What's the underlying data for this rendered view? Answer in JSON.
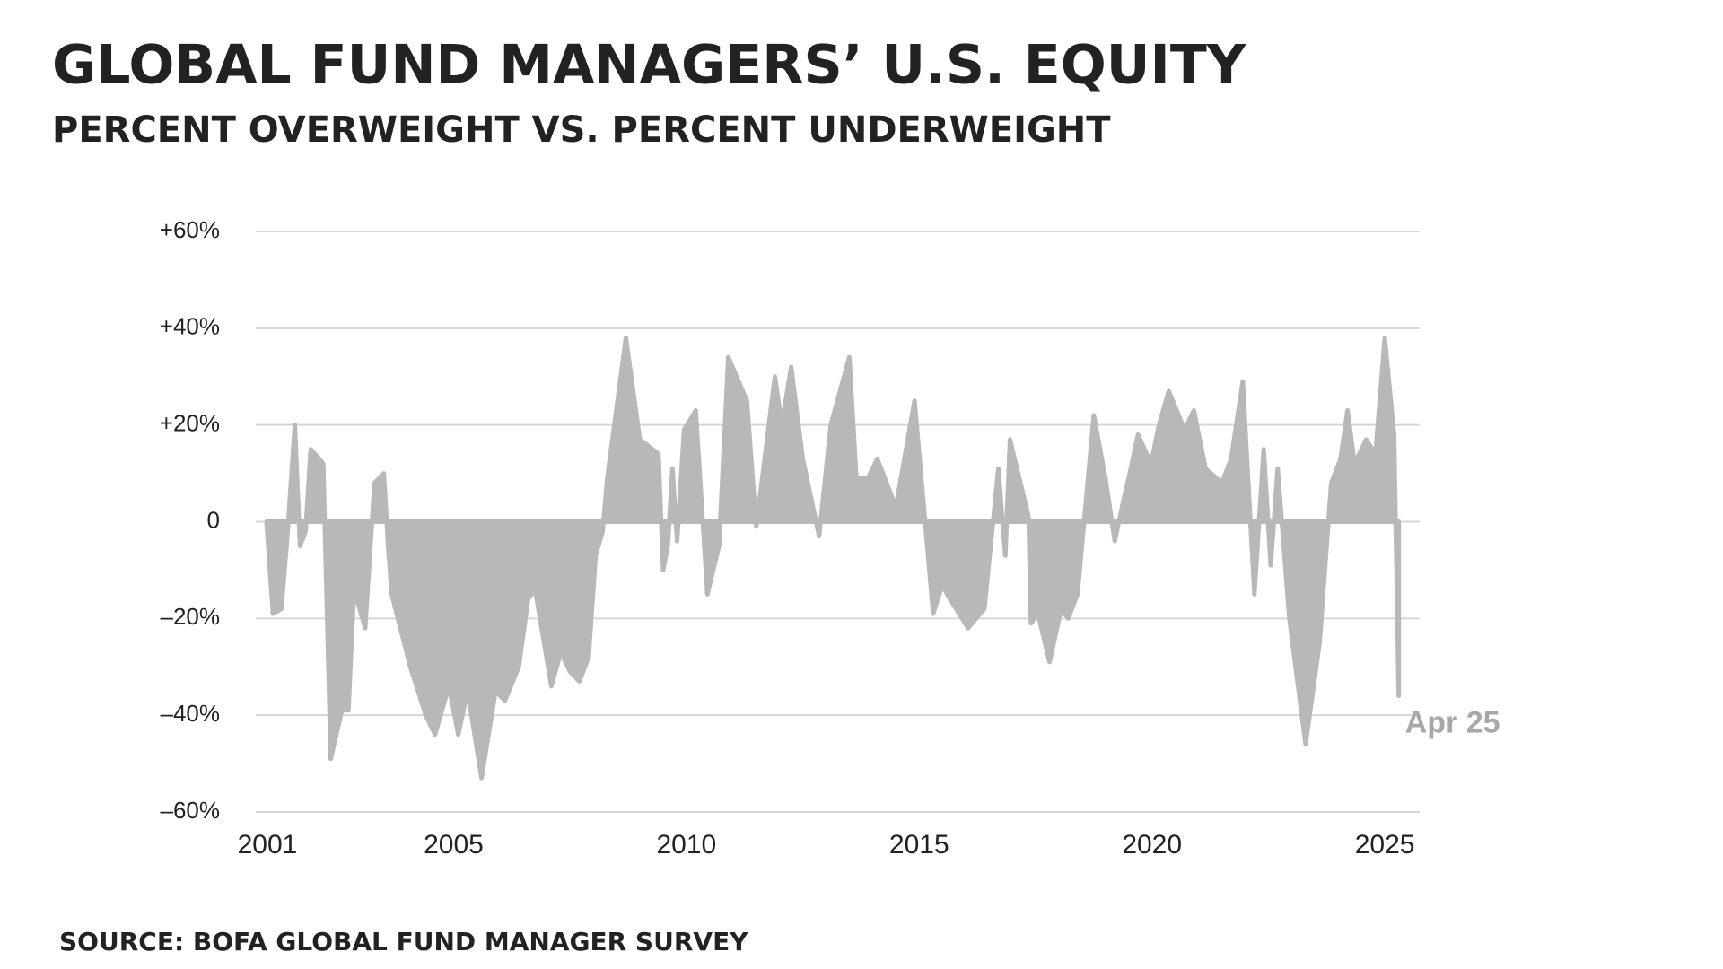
{
  "chart_data": {
    "type": "area",
    "title": "GLOBAL FUND MANAGERS’ U.S. EQUITY",
    "subtitle": "PERCENT OVERWEIGHT VS. PERCENT UNDERWEIGHT",
    "source": "SOURCE: BOFA GLOBAL FUND MANAGER SURVEY",
    "annotation": "Apr 25",
    "color": "#b8b8b8",
    "grid": true,
    "x": [
      2000.98,
      2001.12,
      2001.3,
      2001.42,
      2001.59,
      2001.7,
      2001.82,
      2001.93,
      2002.2,
      2002.36,
      2002.6,
      2002.74,
      2002.86,
      2003.1,
      2003.3,
      2003.5,
      2003.6,
      2003.67,
      2004.07,
      2004.4,
      2004.6,
      2004.9,
      2005.1,
      2005.3,
      2005.6,
      2005.9,
      2006.1,
      2006.4,
      2006.6,
      2006.75,
      2007.1,
      2007.3,
      2007.5,
      2007.7,
      2007.9,
      2008.05,
      2008.2,
      2008.3,
      2008.7,
      2009.0,
      2009.4,
      2009.5,
      2009.6,
      2009.7,
      2009.8,
      2009.95,
      2010.2,
      2010.45,
      2010.7,
      2010.9,
      2011.3,
      2011.5,
      2011.9,
      2012.05,
      2012.25,
      2012.5,
      2012.85,
      2013.1,
      2013.5,
      2013.65,
      2013.9,
      2014.1,
      2014.5,
      2014.9,
      2015.3,
      2015.5,
      2015.6,
      2016.05,
      2016.4,
      2016.7,
      2016.85,
      2016.95,
      2017.35,
      2017.4,
      2017.55,
      2017.8,
      2018.05,
      2018.2,
      2018.4,
      2018.75,
      2019.0,
      2019.2,
      2019.4,
      2019.5,
      2019.7,
      2019.98,
      2020.15,
      2020.36,
      2020.7,
      2020.9,
      2021.15,
      2021.5,
      2021.7,
      2021.95,
      2022.2,
      2022.4,
      2022.55,
      2022.7,
      2022.95,
      2023.3,
      2023.6,
      2023.85,
      2024.05,
      2024.2,
      2024.35,
      2024.6,
      2024.8,
      2025.0,
      2025.2,
      2025.3
    ],
    "values": [
      0,
      -19,
      -18,
      -4,
      20,
      -5,
      -2,
      15,
      12,
      -49,
      -39,
      -39,
      -14,
      -22,
      8,
      10,
      -6,
      -15,
      -30,
      -40,
      -44,
      -34,
      -44,
      -35,
      -53,
      -35,
      -37,
      -30,
      -16,
      -14,
      -34,
      -27,
      -31,
      -33,
      -28,
      -7,
      -2,
      9,
      38,
      17,
      14,
      -10,
      -5,
      11,
      -4,
      19,
      23,
      -15,
      -5,
      34,
      25,
      -1,
      30,
      20,
      32,
      13,
      -3,
      20,
      34,
      9,
      9,
      13,
      3,
      25,
      -19,
      -13,
      -15,
      -22,
      -18,
      11,
      -7,
      17,
      1,
      -21,
      -19,
      -29,
      -18,
      -20,
      -15,
      22,
      9,
      -4,
      5,
      9,
      18,
      12,
      20,
      27,
      19,
      23,
      11,
      8,
      13,
      29,
      -15,
      15,
      -9,
      11,
      -20,
      -46,
      -25,
      8,
      13,
      23,
      12,
      17,
      14,
      38,
      18,
      -36
    ],
    "xlim": [
      2000.75,
      2025.75
    ],
    "xticks": [
      2001,
      2005,
      2010,
      2015,
      2020,
      2025
    ],
    "ylim": [
      -60,
      60
    ],
    "yticks": [
      {
        "value": -60,
        "label": "–60%"
      },
      {
        "value": -40,
        "label": "–40%"
      },
      {
        "value": -20,
        "label": "–20%"
      },
      0,
      {
        "value": 20,
        "label": "+20%"
      },
      {
        "value": 40,
        "label": "+40%"
      },
      {
        "value": 60,
        "label": "+60%"
      }
    ]
  }
}
